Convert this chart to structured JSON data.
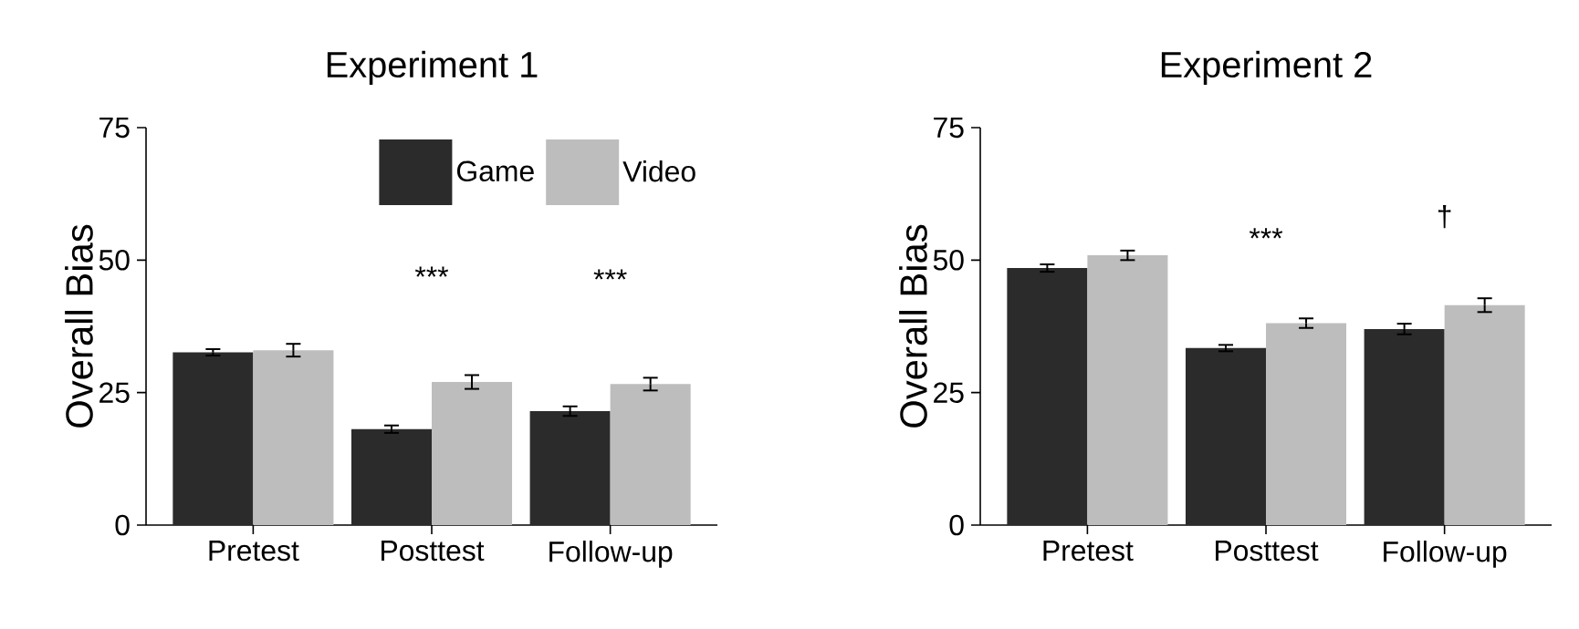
{
  "chart_data": [
    {
      "type": "bar",
      "title": "Experiment 1",
      "ylabel": "Overall Bias",
      "categories": [
        "Pretest",
        "Posttest",
        "Follow-up"
      ],
      "ylim": [
        0,
        75
      ],
      "yticks": [
        0,
        25,
        50,
        75
      ],
      "legend": "top right",
      "series": [
        {
          "name": "Game",
          "color": "#2b2b2b",
          "values": [
            32.6,
            18.1,
            21.5
          ],
          "errors": [
            0.6,
            0.7,
            0.9
          ]
        },
        {
          "name": "Video",
          "color": "#bdbdbd",
          "values": [
            33.0,
            27.0,
            26.6
          ],
          "errors": [
            1.2,
            1.3,
            1.2
          ]
        }
      ],
      "annotations": [
        "***",
        "***"
      ]
    },
    {
      "type": "bar",
      "title": "Experiment 2",
      "ylabel": "Overall Bias",
      "categories": [
        "Pretest",
        "Posttest",
        "Follow-up"
      ],
      "ylim": [
        0,
        75
      ],
      "yticks": [
        0,
        25,
        50,
        75
      ],
      "series": [
        {
          "color": "#2b2b2b",
          "values": [
            48.5,
            33.4,
            37.0
          ],
          "errors": [
            0.7,
            0.6,
            1.0
          ]
        },
        {
          "color": "#bdbdbd",
          "values": [
            50.9,
            38.1,
            41.5
          ],
          "errors": [
            0.9,
            0.9,
            1.3
          ]
        }
      ],
      "annotations": [
        "***",
        "†"
      ]
    }
  ]
}
